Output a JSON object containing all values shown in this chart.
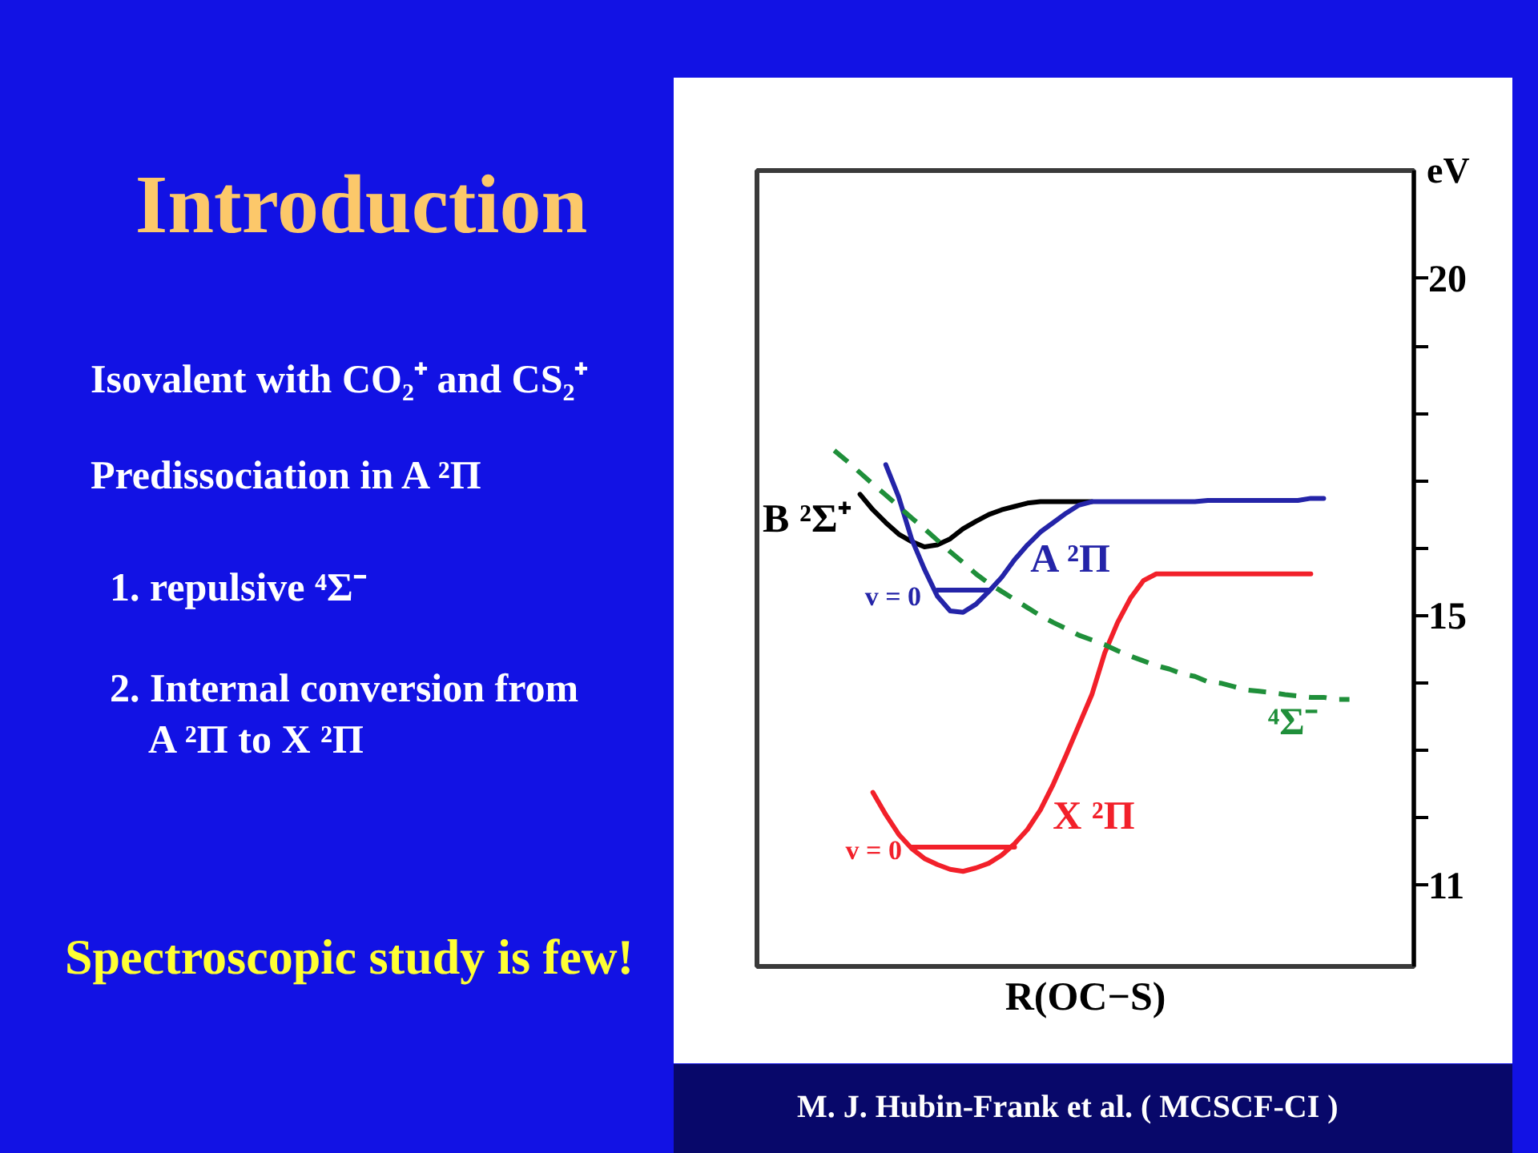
{
  "chart_data": {
    "type": "line",
    "title": "Introduction",
    "xlabel": "R(OC−S)",
    "ylabel": "eV",
    "annotations": [
      "Isovalent with CO₂⁺ and CS₂⁺",
      "Predissociation in A ²Π",
      "1. repulsive ⁴Σ⁻",
      "2. Internal conversion from\nA ²Π to X ²Π",
      "Spectroscopic study is few!",
      "M. J. Hubin-Frank et al. ( MCSCF-CI )"
    ],
    "categories": [
      null,
      null,
      null,
      null,
      null,
      null,
      null,
      null,
      null,
      null,
      null,
      null,
      null,
      null,
      null,
      null,
      null,
      null,
      null,
      null,
      null,
      null,
      null,
      null,
      null,
      null,
      null,
      null,
      null,
      null,
      null,
      null,
      null,
      null,
      null,
      null,
      null,
      null,
      null,
      null,
      null,
      null,
      null,
      null,
      null,
      null,
      null,
      null,
      null,
      null,
      null,
      null
    ],
    "ylim": [
      9.8,
      21.6
    ],
    "yticks": [
      11,
      {
        "value": 12,
        "label": null
      },
      {
        "value": 13,
        "label": null
      },
      {
        "value": 14,
        "label": null
      },
      15,
      {
        "value": 16,
        "label": null
      },
      {
        "value": 17,
        "label": null
      },
      {
        "value": 18,
        "label": null
      },
      {
        "value": 19,
        "label": null
      },
      20
    ],
    "tick_labels": "y",
    "grid": false,
    "series": [
      {
        "name": "B ²Σ⁺",
        "color": "#000000",
        "values": [
          null,
          null,
          null,
          null,
          null,
          null,
          null,
          null,
          16.8,
          16.57,
          16.38,
          16.21,
          16.1,
          16.02,
          16.05,
          16.14,
          16.29,
          16.4,
          16.5,
          16.57,
          16.62,
          16.67,
          16.69,
          16.69,
          16.69,
          16.69,
          16.69,
          null,
          null,
          null,
          null,
          null,
          null,
          null,
          null,
          null,
          null,
          null,
          null,
          null,
          null,
          null,
          null,
          null,
          null,
          null,
          null,
          null,
          null,
          null,
          null,
          null
        ]
      },
      {
        "name": "A ²Π",
        "color": "#2424a8",
        "values": [
          null,
          null,
          null,
          null,
          null,
          null,
          null,
          null,
          null,
          null,
          17.24,
          16.76,
          16.14,
          15.69,
          15.29,
          15.07,
          15.05,
          15.17,
          15.36,
          15.57,
          15.83,
          16.05,
          16.24,
          16.38,
          16.52,
          16.64,
          16.69,
          16.69,
          16.69,
          16.69,
          16.69,
          16.69,
          16.69,
          16.69,
          16.69,
          16.71,
          16.71,
          16.71,
          16.71,
          16.71,
          16.71,
          16.71,
          16.71,
          16.74,
          16.74,
          null,
          null,
          null,
          null,
          null,
          null,
          null
        ]
      },
      {
        "name": "X ²Π",
        "color": "#f2202a",
        "values": [
          null,
          null,
          null,
          null,
          null,
          null,
          null,
          null,
          null,
          12.38,
          12.05,
          11.76,
          11.55,
          11.4,
          11.31,
          11.24,
          11.21,
          11.26,
          11.33,
          11.45,
          11.62,
          11.83,
          12.12,
          12.5,
          12.93,
          13.38,
          13.83,
          14.45,
          14.9,
          15.26,
          15.52,
          15.62,
          15.62,
          15.62,
          15.62,
          15.62,
          15.62,
          15.62,
          15.62,
          15.62,
          15.62,
          15.62,
          15.62,
          15.62,
          null,
          null,
          null,
          null,
          null,
          null,
          null,
          null
        ]
      },
      {
        "name": "⁴Σ⁻",
        "color": "#1f8f3a",
        "line_style": "dashed",
        "values": [
          null,
          null,
          null,
          null,
          null,
          null,
          17.45,
          17.29,
          17.12,
          16.95,
          16.79,
          16.62,
          16.45,
          16.29,
          16.12,
          15.95,
          15.79,
          15.62,
          15.48,
          15.36,
          15.24,
          15.12,
          15.0,
          14.9,
          14.81,
          14.71,
          14.64,
          14.57,
          14.48,
          14.4,
          14.33,
          14.26,
          14.21,
          14.14,
          14.1,
          14.02,
          14.0,
          13.95,
          13.9,
          13.88,
          13.86,
          13.83,
          13.81,
          13.79,
          13.79,
          13.76,
          13.76,
          null,
          null,
          null,
          null,
          null
        ]
      },
      {
        "name": "v = 0",
        "color": "#2424a8",
        "values": [
          null,
          null,
          null,
          null,
          null,
          null,
          null,
          null,
          null,
          null,
          null,
          null,
          null,
          null,
          15.38,
          15.38,
          15.38,
          15.38,
          15.38,
          null,
          null,
          null,
          null,
          null,
          null,
          null,
          null,
          null,
          null,
          null,
          null,
          null,
          null,
          null,
          null,
          null,
          null,
          null,
          null,
          null,
          null,
          null,
          null,
          null,
          null,
          null,
          null,
          null,
          null,
          null,
          null,
          null
        ]
      },
      {
        "name": "v = 0",
        "color": "#f2202a",
        "values": [
          null,
          null,
          null,
          null,
          null,
          null,
          null,
          null,
          null,
          null,
          null,
          null,
          11.57,
          11.57,
          11.57,
          11.57,
          11.57,
          11.57,
          11.57,
          11.57,
          11.57,
          null,
          null,
          null,
          null,
          null,
          null,
          null,
          null,
          null,
          null,
          null,
          null,
          null,
          null,
          null,
          null,
          null,
          null,
          null,
          null,
          null,
          null,
          null,
          null,
          null,
          null,
          null,
          null,
          null,
          null,
          null
        ]
      }
    ]
  }
}
